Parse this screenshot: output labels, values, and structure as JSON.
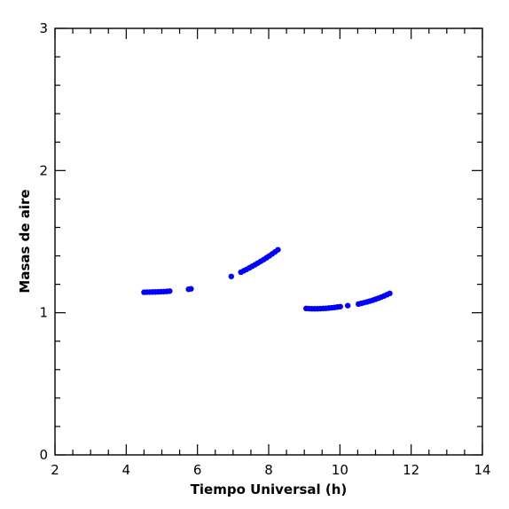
{
  "chart_data": {
    "type": "scatter",
    "title": "",
    "xlabel": "Tiempo Universal (h)",
    "ylabel": "Masas de aire",
    "xlim": [
      2,
      14
    ],
    "ylim": [
      0,
      3
    ],
    "xticks": [
      2,
      4,
      6,
      8,
      10,
      12,
      14
    ],
    "yticks": [
      0,
      1,
      2,
      3
    ],
    "x_minor_step": 0.5,
    "y_minor_step": 0.2,
    "grid": false,
    "legend": "none",
    "marker_color": "#0000ff",
    "series": [
      {
        "points": [
          [
            4.5,
            1.144
          ],
          [
            4.58,
            1.145
          ],
          [
            4.66,
            1.145
          ],
          [
            4.74,
            1.146
          ],
          [
            4.82,
            1.146
          ],
          [
            4.9,
            1.147
          ],
          [
            4.98,
            1.148
          ],
          [
            5.06,
            1.149
          ],
          [
            5.14,
            1.15
          ],
          [
            5.22,
            1.152
          ],
          [
            5.75,
            1.165
          ],
          [
            5.82,
            1.168
          ],
          [
            6.95,
            1.255
          ],
          [
            7.22,
            1.285
          ],
          [
            7.3,
            1.295
          ],
          [
            7.38,
            1.305
          ],
          [
            7.46,
            1.316
          ],
          [
            7.54,
            1.327
          ],
          [
            7.62,
            1.338
          ],
          [
            7.7,
            1.35
          ],
          [
            7.78,
            1.362
          ],
          [
            7.86,
            1.374
          ],
          [
            7.94,
            1.387
          ],
          [
            8.02,
            1.4
          ],
          [
            8.1,
            1.414
          ],
          [
            8.18,
            1.428
          ],
          [
            8.26,
            1.443
          ],
          [
            9.05,
            1.03
          ],
          [
            9.13,
            1.029
          ],
          [
            9.21,
            1.028
          ],
          [
            9.29,
            1.028
          ],
          [
            9.37,
            1.028
          ],
          [
            9.45,
            1.029
          ],
          [
            9.53,
            1.03
          ],
          [
            9.61,
            1.031
          ],
          [
            9.69,
            1.033
          ],
          [
            9.77,
            1.035
          ],
          [
            9.85,
            1.037
          ],
          [
            9.93,
            1.04
          ],
          [
            10.01,
            1.043
          ],
          [
            10.22,
            1.05
          ],
          [
            10.52,
            1.061
          ],
          [
            10.6,
            1.066
          ],
          [
            10.68,
            1.071
          ],
          [
            10.76,
            1.076
          ],
          [
            10.84,
            1.082
          ],
          [
            10.92,
            1.088
          ],
          [
            11.0,
            1.095
          ],
          [
            11.08,
            1.102
          ],
          [
            11.16,
            1.11
          ],
          [
            11.24,
            1.118
          ],
          [
            11.32,
            1.127
          ],
          [
            11.4,
            1.136
          ]
        ]
      }
    ]
  }
}
